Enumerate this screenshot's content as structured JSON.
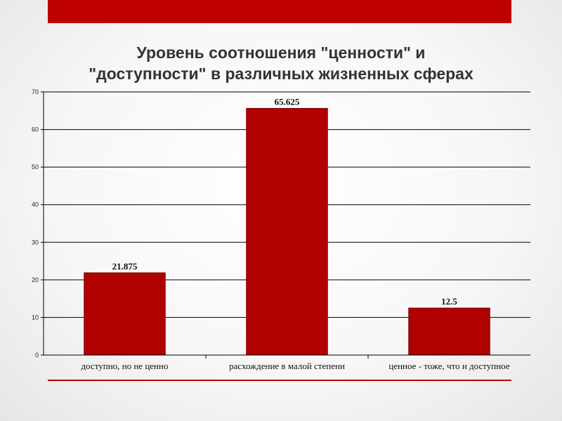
{
  "slide": {
    "title_line1": "Уровень соотношения \"ценности\" и",
    "title_line2": "\"доступности\" в различных жизненных сферах",
    "accent_color": "#c00000"
  },
  "chart_data": {
    "type": "bar",
    "categories": [
      "доступно, но не ценно",
      "расхождение в малой степени",
      "ценное - тоже, что и доступное"
    ],
    "values": [
      21.875,
      65.625,
      12.5
    ],
    "data_labels": [
      "21.875",
      "65.625",
      "12.5"
    ],
    "ylim": [
      0,
      70
    ],
    "yticks": [
      0,
      10,
      20,
      30,
      40,
      50,
      60,
      70
    ],
    "grid": true,
    "legend": "none",
    "bar_color": "#b00000"
  }
}
